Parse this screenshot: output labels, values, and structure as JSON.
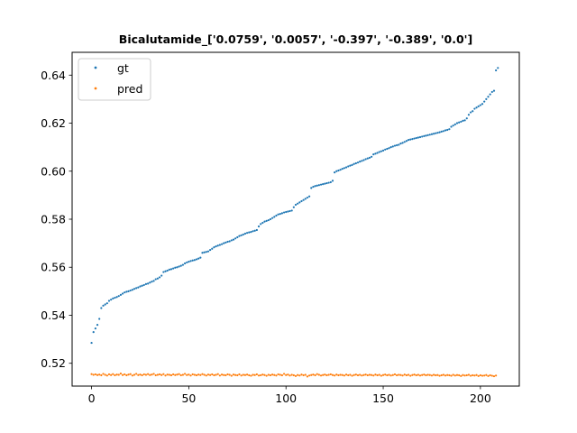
{
  "chart_data": {
    "type": "scatter",
    "title": "Bicalutamide_['0.0759', '0.0057', '-0.397', '-0.389', '0.0']",
    "xlabel": "",
    "ylabel": "",
    "xlim": [
      -10,
      220
    ],
    "ylim": [
      0.5105,
      0.6495
    ],
    "xticks": [
      0,
      50,
      100,
      150,
      200
    ],
    "yticks": [
      0.52,
      0.54,
      0.56,
      0.58,
      0.6,
      0.62,
      0.64
    ],
    "xtick_labels": [
      "0",
      "50",
      "100",
      "150",
      "200"
    ],
    "ytick_labels": [
      "0.52",
      "0.54",
      "0.56",
      "0.58",
      "0.60",
      "0.62",
      "0.64"
    ],
    "grid": false,
    "legend": "top-left",
    "series": [
      {
        "name": "gt",
        "color": "#1f77b4",
        "x_start": 0,
        "values": [
          0.5285,
          0.533,
          0.5345,
          0.536,
          0.5385,
          0.543,
          0.544,
          0.5445,
          0.545,
          0.546,
          0.5465,
          0.547,
          0.5473,
          0.5476,
          0.548,
          0.5485,
          0.549,
          0.5495,
          0.5498,
          0.55,
          0.5503,
          0.5506,
          0.551,
          0.5513,
          0.5516,
          0.552,
          0.5523,
          0.5526,
          0.553,
          0.5532,
          0.5536,
          0.554,
          0.5543,
          0.555,
          0.5553,
          0.5558,
          0.5565,
          0.558,
          0.5583,
          0.5586,
          0.559,
          0.5592,
          0.5595,
          0.5598,
          0.56,
          0.5603,
          0.5606,
          0.561,
          0.5616,
          0.562,
          0.5623,
          0.5626,
          0.5628,
          0.563,
          0.5633,
          0.5636,
          0.564,
          0.566,
          0.5662,
          0.5664,
          0.5666,
          0.5672,
          0.5677,
          0.5683,
          0.5687,
          0.569,
          0.5693,
          0.5696,
          0.57,
          0.5703,
          0.5706,
          0.5708,
          0.5712,
          0.5715,
          0.572,
          0.5725,
          0.573,
          0.5733,
          0.5736,
          0.574,
          0.5743,
          0.5745,
          0.5747,
          0.575,
          0.5752,
          0.5755,
          0.577,
          0.578,
          0.5785,
          0.579,
          0.5793,
          0.5796,
          0.58,
          0.5805,
          0.581,
          0.5815,
          0.582,
          0.5822,
          0.5825,
          0.5828,
          0.583,
          0.5832,
          0.5834,
          0.5836,
          0.585,
          0.586,
          0.5865,
          0.587,
          0.5875,
          0.588,
          0.5885,
          0.589,
          0.5895,
          0.593,
          0.5935,
          0.5938,
          0.594,
          0.5942,
          0.5944,
          0.5946,
          0.5948,
          0.595,
          0.5952,
          0.5954,
          0.596,
          0.5995,
          0.6,
          0.6003,
          0.6006,
          0.601,
          0.6013,
          0.6016,
          0.602,
          0.6023,
          0.6026,
          0.603,
          0.6033,
          0.6036,
          0.604,
          0.6043,
          0.6046,
          0.605,
          0.6053,
          0.6056,
          0.606,
          0.607,
          0.6073,
          0.6076,
          0.608,
          0.6083,
          0.6086,
          0.609,
          0.6093,
          0.6096,
          0.61,
          0.6103,
          0.6106,
          0.6108,
          0.611,
          0.6115,
          0.6118,
          0.6122,
          0.6126,
          0.613,
          0.6132,
          0.6134,
          0.6136,
          0.6138,
          0.614,
          0.6142,
          0.6144,
          0.6146,
          0.6148,
          0.615,
          0.6152,
          0.6154,
          0.6156,
          0.6158,
          0.616,
          0.6162,
          0.6165,
          0.6167,
          0.617,
          0.6172,
          0.6175,
          0.6185,
          0.619,
          0.6195,
          0.62,
          0.6203,
          0.6206,
          0.621,
          0.6212,
          0.622,
          0.6235,
          0.6245,
          0.625,
          0.626,
          0.6265,
          0.627,
          0.6275,
          0.628,
          0.629,
          0.63,
          0.631,
          0.632,
          0.633,
          0.6335,
          0.642,
          0.643
        ]
      },
      {
        "name": "pred",
        "color": "#ff7f0e",
        "x_start": 0,
        "values": [
          0.5155,
          0.5152,
          0.5154,
          0.5151,
          0.5153,
          0.515,
          0.5156,
          0.5152,
          0.5149,
          0.5154,
          0.5151,
          0.5155,
          0.515,
          0.5153,
          0.5152,
          0.5157,
          0.5151,
          0.5154,
          0.515,
          0.5153,
          0.5155,
          0.5149,
          0.5152,
          0.5156,
          0.5151,
          0.5153,
          0.515,
          0.5154,
          0.5152,
          0.5155,
          0.5151,
          0.5153,
          0.5156,
          0.515,
          0.5152,
          0.5154,
          0.5151,
          0.5155,
          0.5149,
          0.5153,
          0.5152,
          0.515,
          0.5154,
          0.5151,
          0.5153,
          0.5155,
          0.515,
          0.5152,
          0.5156,
          0.5151,
          0.5153,
          0.5149,
          0.5154,
          0.5152,
          0.515,
          0.5153,
          0.5151,
          0.5155,
          0.5152,
          0.5149,
          0.5153,
          0.5151,
          0.5154,
          0.515,
          0.5152,
          0.5155,
          0.5149,
          0.5153,
          0.5151,
          0.515,
          0.5154,
          0.5152,
          0.5148,
          0.5153,
          0.5151,
          0.515,
          0.5154,
          0.5149,
          0.5152,
          0.5151,
          0.5153,
          0.515,
          0.5148,
          0.5152,
          0.5151,
          0.5154,
          0.5149,
          0.515,
          0.5153,
          0.5151,
          0.5148,
          0.5152,
          0.515,
          0.5153,
          0.5151,
          0.5149,
          0.5154,
          0.5152,
          0.515,
          0.5156,
          0.5151,
          0.5153,
          0.5149,
          0.5152,
          0.515,
          0.5147,
          0.5151,
          0.5149,
          0.5153,
          0.515,
          0.5152,
          0.5145,
          0.5149,
          0.5151,
          0.5153,
          0.515,
          0.5155,
          0.5152,
          0.5149,
          0.5151,
          0.5153,
          0.515,
          0.5152,
          0.5154,
          0.5151,
          0.5149,
          0.5153,
          0.515,
          0.5152,
          0.5151,
          0.5149,
          0.5153,
          0.515,
          0.5152,
          0.5148,
          0.5151,
          0.5153,
          0.515,
          0.5152,
          0.5149,
          0.5151,
          0.5153,
          0.515,
          0.5152,
          0.5151,
          0.5149,
          0.5153,
          0.515,
          0.5152,
          0.5148,
          0.5151,
          0.5153,
          0.515,
          0.5152,
          0.5149,
          0.5151,
          0.5154,
          0.515,
          0.5152,
          0.5151,
          0.5149,
          0.5153,
          0.515,
          0.5152,
          0.5148,
          0.5151,
          0.5153,
          0.515,
          0.5152,
          0.5149,
          0.5151,
          0.5153,
          0.515,
          0.5152,
          0.5151,
          0.5149,
          0.5152,
          0.515,
          0.5151,
          0.5148,
          0.515,
          0.5152,
          0.5149,
          0.5151,
          0.515,
          0.5148,
          0.5152,
          0.5149,
          0.5151,
          0.515,
          0.5147,
          0.5151,
          0.5149,
          0.515,
          0.5152,
          0.5148,
          0.515,
          0.5149,
          0.5151,
          0.5147,
          0.515,
          0.5148,
          0.5149,
          0.5151,
          0.5147,
          0.515,
          0.5148,
          0.5146,
          0.5149
        ]
      }
    ]
  }
}
